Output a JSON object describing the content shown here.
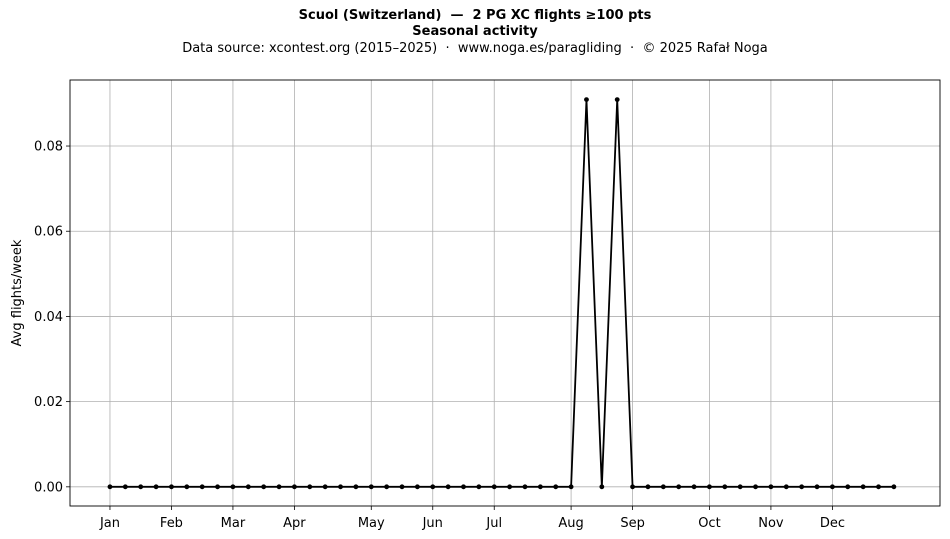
{
  "chart_data": {
    "type": "line",
    "title": "Scuol (Switzerland)  —  2 PG XC flights ≥100 pts",
    "title_line2": "Seasonal activity",
    "subtitle": "Data source: xcontest.org (2015–2025)  ·  www.noga.es/paragliding  ·  © 2025 Rafał Noga",
    "xlabel": "",
    "ylabel": "Avg flights/week",
    "ylim": [
      -0.0045,
      0.0955
    ],
    "xlim": [
      -2.6,
      54.0
    ],
    "grid": true,
    "line_color": "#000000",
    "x_ticks": [
      {
        "label": "Jan",
        "x": 0
      },
      {
        "label": "Feb",
        "x": 4
      },
      {
        "label": "Mar",
        "x": 8
      },
      {
        "label": "Apr",
        "x": 12
      },
      {
        "label": "May",
        "x": 17
      },
      {
        "label": "Jun",
        "x": 21
      },
      {
        "label": "Jul",
        "x": 25
      },
      {
        "label": "Aug",
        "x": 30
      },
      {
        "label": "Sep",
        "x": 34
      },
      {
        "label": "Oct",
        "x": 39
      },
      {
        "label": "Nov",
        "x": 43
      },
      {
        "label": "Dec",
        "x": 47
      }
    ],
    "y_ticks": [
      "0.00",
      "0.02",
      "0.04",
      "0.06",
      "0.08"
    ],
    "y_tick_values": [
      0,
      0.02,
      0.04,
      0.06,
      0.08
    ],
    "series": [
      {
        "x": [
          0,
          1,
          2,
          3,
          4,
          5,
          6,
          7,
          8,
          9,
          10,
          11,
          12,
          13,
          14,
          15,
          16,
          17,
          18,
          19,
          20,
          21,
          22,
          23,
          24,
          25,
          26,
          27,
          28,
          29,
          30,
          31,
          32,
          33,
          34,
          35,
          36,
          37,
          38,
          39,
          40,
          41,
          42,
          43,
          44,
          45,
          46,
          47,
          48,
          49,
          50,
          51
        ],
        "values": [
          0,
          0,
          0,
          0,
          0,
          0,
          0,
          0,
          0,
          0,
          0,
          0,
          0,
          0,
          0,
          0,
          0,
          0,
          0,
          0,
          0,
          0,
          0,
          0,
          0,
          0,
          0,
          0,
          0,
          0,
          0,
          0.0909,
          0,
          0.0909,
          0,
          0,
          0,
          0,
          0,
          0,
          0,
          0,
          0,
          0,
          0,
          0,
          0,
          0,
          0,
          0,
          0,
          0
        ]
      }
    ]
  }
}
